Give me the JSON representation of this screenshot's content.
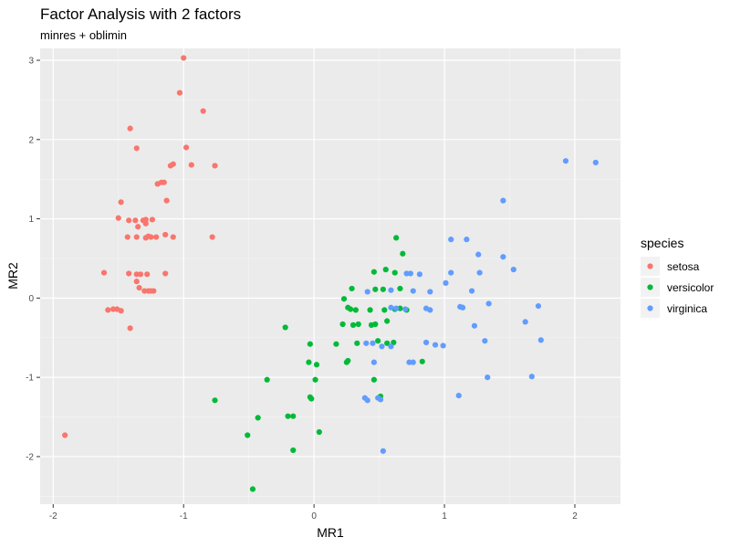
{
  "chart_data": {
    "type": "scatter",
    "title": "Factor Analysis with 2 factors",
    "subtitle": "minres + oblimin",
    "xlabel": "MR1",
    "ylabel": "MR2",
    "xlim": [
      -2.1,
      2.35
    ],
    "ylim": [
      -2.6,
      3.15
    ],
    "x_ticks": [
      -2,
      -1,
      0,
      1,
      2
    ],
    "y_ticks": [
      -2,
      -1,
      0,
      1,
      2,
      3
    ],
    "x_tick_labels": [
      "-2",
      "-1",
      "0",
      "1",
      "2"
    ],
    "y_tick_labels": [
      "-2",
      "-1",
      "0",
      "1",
      "2",
      "3"
    ],
    "grid": true,
    "legend": {
      "title": "species",
      "placement": "right"
    },
    "series": [
      {
        "name": "setosa",
        "color": "#F8766D",
        "points": [
          [
            -1.0,
            3.03
          ],
          [
            -1.03,
            2.59
          ],
          [
            -0.85,
            2.36
          ],
          [
            -1.41,
            2.14
          ],
          [
            -0.98,
            1.9
          ],
          [
            -1.36,
            1.89
          ],
          [
            -1.08,
            1.69
          ],
          [
            -1.1,
            1.67
          ],
          [
            -0.94,
            1.68
          ],
          [
            -0.76,
            1.67
          ],
          [
            -1.17,
            1.46
          ],
          [
            -1.15,
            1.46
          ],
          [
            -1.2,
            1.44
          ],
          [
            -1.48,
            1.21
          ],
          [
            -1.13,
            1.23
          ],
          [
            -1.5,
            1.01
          ],
          [
            -1.42,
            0.98
          ],
          [
            -1.37,
            0.98
          ],
          [
            -1.31,
            0.98
          ],
          [
            -1.29,
            0.99
          ],
          [
            -1.24,
            0.99
          ],
          [
            -1.29,
            0.94
          ],
          [
            -1.35,
            0.9
          ],
          [
            -1.14,
            0.8
          ],
          [
            -1.08,
            0.77
          ],
          [
            -1.43,
            0.77
          ],
          [
            -1.36,
            0.77
          ],
          [
            -1.29,
            0.76
          ],
          [
            -1.27,
            0.78
          ],
          [
            -1.25,
            0.77
          ],
          [
            -1.21,
            0.77
          ],
          [
            -0.78,
            0.77
          ],
          [
            -1.61,
            0.32
          ],
          [
            -1.42,
            0.31
          ],
          [
            -1.36,
            0.3
          ],
          [
            -1.33,
            0.3
          ],
          [
            -1.28,
            0.3
          ],
          [
            -1.14,
            0.31
          ],
          [
            -1.36,
            0.21
          ],
          [
            -1.34,
            0.13
          ],
          [
            -1.3,
            0.09
          ],
          [
            -1.27,
            0.09
          ],
          [
            -1.25,
            0.09
          ],
          [
            -1.23,
            0.09
          ],
          [
            -1.58,
            -0.15
          ],
          [
            -1.54,
            -0.14
          ],
          [
            -1.51,
            -0.14
          ],
          [
            -1.48,
            -0.16
          ],
          [
            -1.41,
            -0.38
          ],
          [
            -1.91,
            -1.73
          ]
        ]
      },
      {
        "name": "versicolor",
        "color": "#00BA38",
        "points": [
          [
            0.63,
            0.76
          ],
          [
            0.68,
            0.56
          ],
          [
            0.46,
            0.33
          ],
          [
            0.55,
            0.36
          ],
          [
            0.62,
            0.32
          ],
          [
            0.29,
            0.12
          ],
          [
            0.47,
            0.11
          ],
          [
            0.53,
            0.11
          ],
          [
            0.66,
            0.12
          ],
          [
            0.23,
            -0.01
          ],
          [
            0.28,
            -0.14
          ],
          [
            0.32,
            -0.15
          ],
          [
            0.43,
            -0.15
          ],
          [
            0.54,
            -0.15
          ],
          [
            0.62,
            -0.14
          ],
          [
            0.66,
            -0.13
          ],
          [
            0.71,
            -0.15
          ],
          [
            0.26,
            -0.12
          ],
          [
            0.34,
            -0.33
          ],
          [
            0.3,
            -0.34
          ],
          [
            0.44,
            -0.34
          ],
          [
            0.47,
            -0.33
          ],
          [
            0.56,
            -0.29
          ],
          [
            0.22,
            -0.33
          ],
          [
            -0.22,
            -0.37
          ],
          [
            0.17,
            -0.58
          ],
          [
            0.33,
            -0.57
          ],
          [
            0.49,
            -0.54
          ],
          [
            0.56,
            -0.57
          ],
          [
            0.61,
            -0.56
          ],
          [
            -0.03,
            -0.58
          ],
          [
            0.25,
            -0.81
          ],
          [
            0.26,
            -0.79
          ],
          [
            -0.04,
            -0.81
          ],
          [
            0.02,
            -0.84
          ],
          [
            0.83,
            -0.8
          ],
          [
            -0.36,
            -1.03
          ],
          [
            0.01,
            -1.03
          ],
          [
            0.46,
            -1.03
          ],
          [
            -0.03,
            -1.25
          ],
          [
            -0.02,
            -1.27
          ],
          [
            0.51,
            -1.24
          ],
          [
            -0.76,
            -1.29
          ],
          [
            -0.2,
            -1.49
          ],
          [
            -0.16,
            -1.49
          ],
          [
            -0.43,
            -1.51
          ],
          [
            0.04,
            -1.69
          ],
          [
            -0.51,
            -1.73
          ],
          [
            -0.16,
            -1.92
          ],
          [
            -0.47,
            -2.41
          ]
        ]
      },
      {
        "name": "virginica",
        "color": "#619CFF",
        "points": [
          [
            1.93,
            1.73
          ],
          [
            2.16,
            1.71
          ],
          [
            1.45,
            1.23
          ],
          [
            1.05,
            0.74
          ],
          [
            1.17,
            0.74
          ],
          [
            1.26,
            0.55
          ],
          [
            1.45,
            0.52
          ],
          [
            1.53,
            0.36
          ],
          [
            1.05,
            0.32
          ],
          [
            1.27,
            0.32
          ],
          [
            0.74,
            0.31
          ],
          [
            0.81,
            0.3
          ],
          [
            0.41,
            0.08
          ],
          [
            0.59,
            0.1
          ],
          [
            0.76,
            0.09
          ],
          [
            0.89,
            0.08
          ],
          [
            1.21,
            0.09
          ],
          [
            0.59,
            -0.12
          ],
          [
            0.63,
            -0.13
          ],
          [
            0.7,
            -0.14
          ],
          [
            0.86,
            -0.13
          ],
          [
            0.89,
            -0.15
          ],
          [
            1.12,
            -0.11
          ],
          [
            1.14,
            -0.12
          ],
          [
            1.34,
            -0.07
          ],
          [
            1.72,
            -0.1
          ],
          [
            1.23,
            -0.35
          ],
          [
            1.62,
            -0.3
          ],
          [
            0.45,
            -0.57
          ],
          [
            0.52,
            -0.61
          ],
          [
            0.59,
            -0.61
          ],
          [
            0.86,
            -0.56
          ],
          [
            0.93,
            -0.59
          ],
          [
            0.99,
            -0.6
          ],
          [
            1.31,
            -0.54
          ],
          [
            1.74,
            -0.53
          ],
          [
            0.46,
            -0.81
          ],
          [
            0.73,
            -0.81
          ],
          [
            0.76,
            -0.81
          ],
          [
            1.33,
            -1.0
          ],
          [
            1.67,
            -0.99
          ],
          [
            0.39,
            -1.26
          ],
          [
            0.41,
            -1.29
          ],
          [
            0.49,
            -1.26
          ],
          [
            0.51,
            -1.28
          ],
          [
            1.11,
            -1.23
          ],
          [
            0.53,
            -1.93
          ],
          [
            0.71,
            0.31
          ],
          [
            1.01,
            0.19
          ],
          [
            0.4,
            -0.57
          ]
        ]
      }
    ]
  }
}
